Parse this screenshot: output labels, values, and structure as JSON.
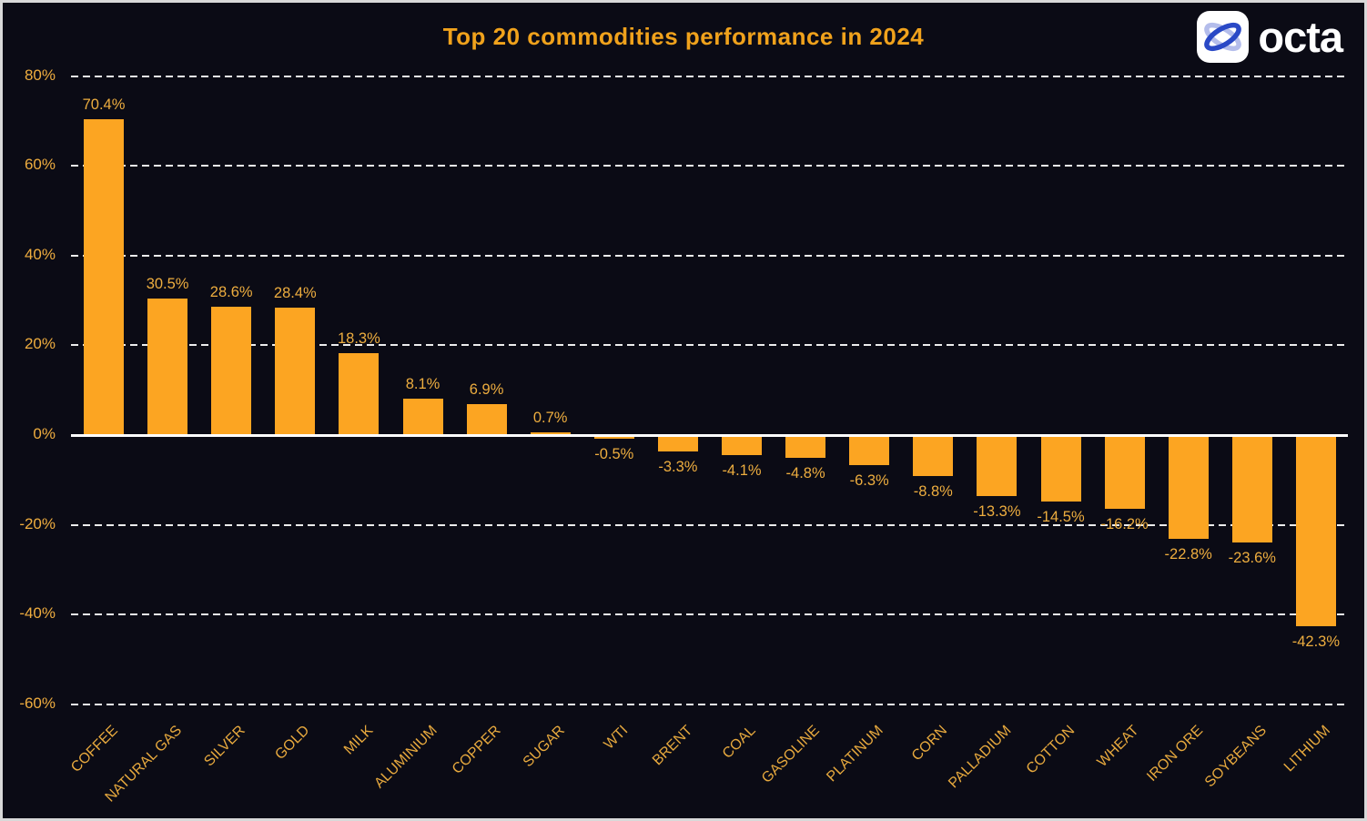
{
  "logo": {
    "text": "octa"
  },
  "chart_data": {
    "type": "bar",
    "title": "Top 20 commodities performance in 2024",
    "categories": [
      "COFFEE",
      "NATURAL GAS",
      "SILVER",
      "GOLD",
      "MILK",
      "ALUMINIUM",
      "COPPER",
      "SUGAR",
      "WTI",
      "BRENT",
      "COAL",
      "GASOLINE",
      "PLATINUM",
      "CORN",
      "PALLADIUM",
      "COTTON",
      "WHEAT",
      "IRON ORE",
      "SOYBEANS",
      "LITHIUM"
    ],
    "values": [
      70.4,
      30.5,
      28.6,
      28.4,
      18.3,
      8.1,
      6.9,
      0.7,
      -0.5,
      -3.3,
      -4.1,
      -4.8,
      -6.3,
      -8.8,
      -13.3,
      -14.5,
      -16.2,
      -22.8,
      -23.6,
      -42.3
    ],
    "value_labels": [
      "70.4%",
      "30.5%",
      "28.6%",
      "28.4%",
      "18.3%",
      "8.1%",
      "6.9%",
      "0.7%",
      "-0.5%",
      "-3.3%",
      "-4.1%",
      "-4.8%",
      "-6.3%",
      "-8.8%",
      "-13.3%",
      "-14.5%",
      "-16.2%",
      "-22.8%",
      "-23.6%",
      "-42.3%"
    ],
    "yticks": [
      80,
      60,
      40,
      20,
      0,
      -20,
      -40,
      -60
    ],
    "ytick_labels": [
      "80%",
      "60%",
      "40%",
      "20%",
      "0%",
      "-20%",
      "-40%",
      "-60%"
    ],
    "ylim": [
      -60,
      80
    ],
    "xlabel": "",
    "ylabel": "",
    "grid": "horizontal-dashed",
    "legend": "none",
    "colors": {
      "background": "#0b0b15",
      "bar": "#fca522",
      "title": "#f0a21c",
      "labels": "#edad3f",
      "gridline": "#ededed",
      "zero_axis": "#ffffff",
      "frame_border": "#d9d9d9",
      "logo_text": "#ffffff",
      "logo_icon_bg": "#ffffff",
      "logo_icon_blue": "#2a49c6",
      "logo_icon_lavender": "#b4bdeb"
    }
  }
}
